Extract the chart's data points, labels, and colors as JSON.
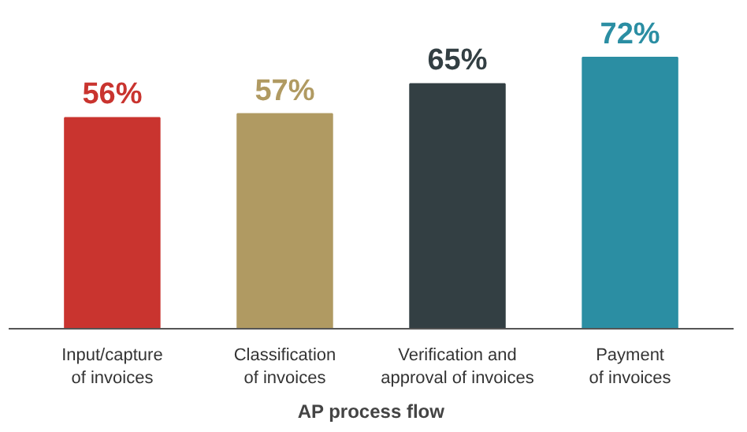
{
  "chart_data": {
    "type": "bar",
    "xlabel": "AP process flow",
    "categories": [
      "Input/capture\nof invoices",
      "Classification\nof invoices",
      "Verification and\napproval of invoices",
      "Payment\nof invoices"
    ],
    "values": [
      56,
      57,
      65,
      72
    ],
    "value_labels": [
      "56%",
      "57%",
      "65%",
      "72%"
    ],
    "colors": [
      "#c9342f",
      "#b09a62",
      "#333f43",
      "#2b8ea3"
    ]
  }
}
